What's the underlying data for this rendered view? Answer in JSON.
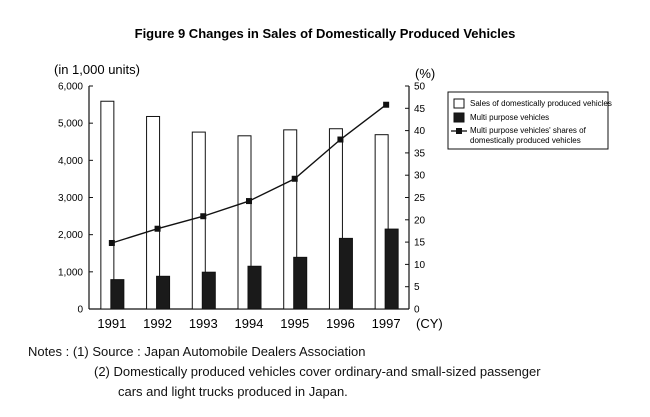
{
  "chart_data": {
    "type": "bar",
    "title": "Figure 9 Changes in Sales of Domestically Produced Vehicles",
    "left_unit": "(in 1,000 units)",
    "right_unit": "(%)",
    "categories": [
      "1991",
      "1992",
      "1993",
      "1994",
      "1995",
      "1996",
      "1997"
    ],
    "x_unit": "(CY)",
    "y_ticks": [
      "0",
      "1,000",
      "2,000",
      "3,000",
      "4,000",
      "5,000",
      "6,000"
    ],
    "ylim": [
      0,
      6000
    ],
    "y2_ticks": [
      "0",
      "5",
      "10",
      "15",
      "20",
      "25",
      "30",
      "35",
      "40",
      "45",
      "50"
    ],
    "y2lim": [
      0,
      50
    ],
    "series": [
      {
        "name": "Sales of domestically produced vehicles",
        "type": "bar",
        "color": "#ffffff",
        "values": [
          5590,
          5180,
          4760,
          4660,
          4820,
          4850,
          4690
        ]
      },
      {
        "name": "Multi purpose vehicles",
        "type": "bar",
        "color": "#1a1a1a",
        "values": [
          790,
          880,
          990,
          1150,
          1390,
          1900,
          2150
        ]
      },
      {
        "name": "Multi purpose vehicles' shares of domestically produced vehicles",
        "legend_lines": [
          "Multi purpose vehicles' shares of",
          "domestically produced vehicles"
        ],
        "type": "line",
        "axis": "right",
        "color": "#111111",
        "values": [
          14.8,
          18.0,
          20.8,
          24.2,
          29.2,
          38.0,
          45.8
        ]
      }
    ],
    "legend_position": "top-right"
  },
  "notes": {
    "label": "Notes :",
    "items": [
      {
        "num": "(1)",
        "text": "Source : Japan Automobile Dealers Association"
      },
      {
        "num": "(2)",
        "text": "Domestically produced vehicles cover ordinary-and small-sized passenger",
        "continuation": "cars and light trucks produced in Japan."
      }
    ]
  }
}
